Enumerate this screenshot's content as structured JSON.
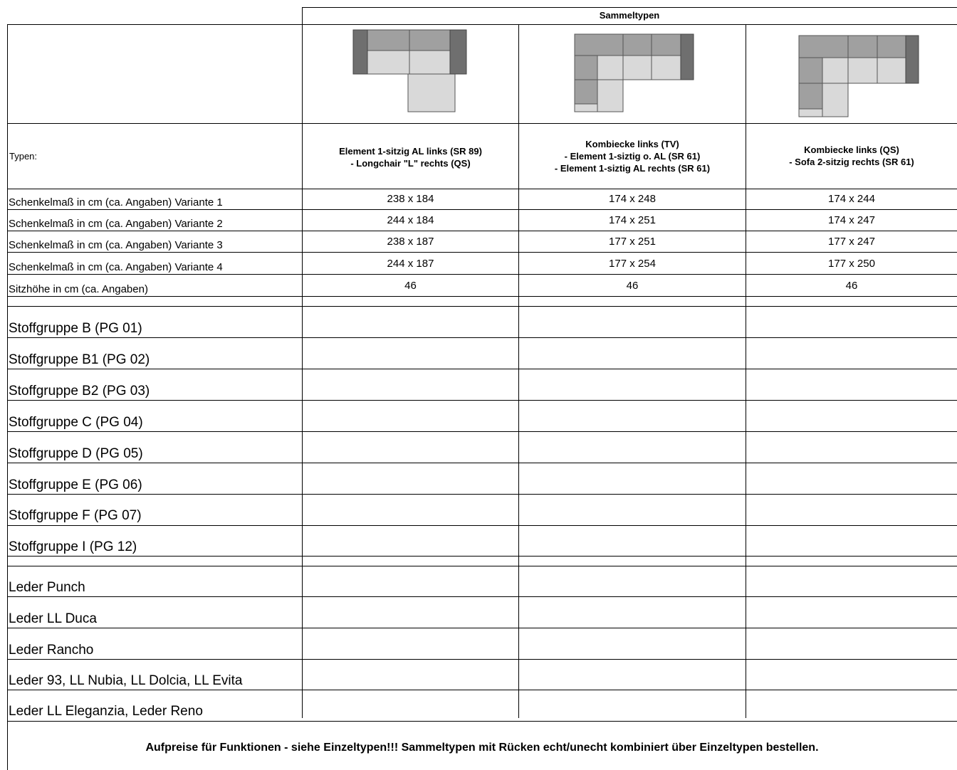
{
  "header": {
    "group_title": "Sammeltypen"
  },
  "columns": [
    {
      "sketch_icon": "sofa-longchair-icon",
      "type_lines": [
        "Element 1-sitzig AL links (SR 89)",
        "- Longchair \"L\" rechts (QS)"
      ],
      "dims": [
        "238 x 184",
        "244 x 184",
        "238 x 187",
        "244 x 187"
      ],
      "seat_height": "46"
    },
    {
      "sketch_icon": "sofa-corner-tv-icon",
      "type_lines": [
        "Kombiecke links (TV)",
        "- Element 1-siztig o. AL (SR 61)",
        "- Element 1-siztig AL rechts (SR 61)"
      ],
      "dims": [
        "174 x 248",
        "174 x 251",
        "177 x 251",
        "177 x 254"
      ],
      "seat_height": "46"
    },
    {
      "sketch_icon": "sofa-corner-qs-icon",
      "type_lines": [
        "Kombiecke links (QS)",
        "- Sofa 2-sitzig rechts (SR 61)"
      ],
      "dims": [
        "174 x 244",
        "174 x 247",
        "177 x 247",
        "177 x 250"
      ],
      "seat_height": "46"
    }
  ],
  "row_labels": {
    "types": "Typen:",
    "dims": [
      "Schenkelmaß in cm (ca. Angaben) Variante 1",
      "Schenkelmaß in cm (ca. Angaben) Variante 2",
      "Schenkelmaß in cm (ca. Angaben) Variante 3",
      "Schenkelmaß in cm (ca. Angaben) Variante 4"
    ],
    "seat_height": "Sitzhöhe in cm (ca. Angaben)"
  },
  "fabric_groups": [
    "Stoffgruppe B (PG 01)",
    "Stoffgruppe B1 (PG 02)",
    "Stoffgruppe B2 (PG 03)",
    "Stoffgruppe C (PG 04)",
    "Stoffgruppe D (PG 05)",
    "Stoffgruppe E (PG 06)",
    "Stoffgruppe F (PG 07)",
    "Stoffgruppe I (PG 12)"
  ],
  "leather_groups": [
    "Leder Punch",
    "Leder LL Duca",
    "Leder Rancho",
    "Leder 93, LL Nubia, LL Dolcia, LL Evita",
    "Leder LL Eleganzia, Leder Reno"
  ],
  "footer": {
    "note": "Aufpreise für Funktionen - siehe Einzeltypen!!! Sammeltypen mit Rücken echt/unecht kombiniert über Einzeltypen bestellen."
  },
  "colors": {
    "armrest": "#6f6f6f",
    "backrest": "#a0a0a0",
    "seat": "#d9d9d9",
    "grid": "#000000"
  }
}
